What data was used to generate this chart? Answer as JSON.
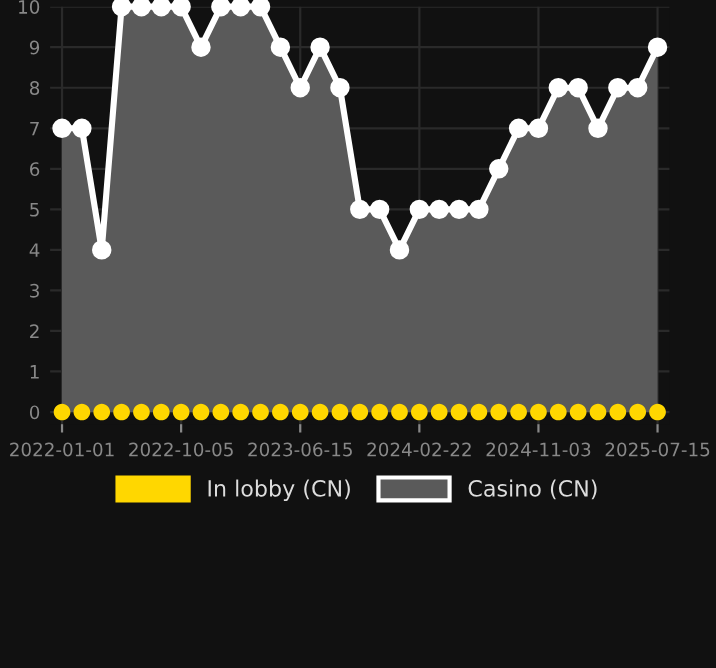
{
  "chart_data": {
    "type": "area",
    "categories": [
      "2022-01-01",
      null,
      null,
      null,
      null,
      null,
      "2022-10-05",
      null,
      null,
      null,
      null,
      null,
      "2023-06-15",
      null,
      null,
      null,
      null,
      null,
      "2024-02-22",
      null,
      null,
      null,
      null,
      null,
      "2024-11-03",
      null,
      null,
      null,
      null,
      null,
      "2025-07-15"
    ],
    "series": [
      {
        "name": "In lobby (CN)",
        "type": "scatter",
        "color": "#ffd700",
        "values": [
          0,
          0,
          0,
          0,
          0,
          0,
          0,
          0,
          0,
          0,
          0,
          0,
          0,
          0,
          0,
          0,
          0,
          0,
          0,
          0,
          0,
          0,
          0,
          0,
          0,
          0,
          0,
          0,
          0,
          0,
          0
        ]
      },
      {
        "name": "Casino (CN)",
        "color": "#ffffff",
        "values": [
          7,
          7,
          4,
          10,
          10,
          10,
          10,
          9,
          10,
          10,
          10,
          9,
          8,
          9,
          8,
          5,
          5,
          4,
          5,
          5,
          5,
          5,
          6,
          7,
          7,
          8,
          8,
          7,
          8,
          8,
          9
        ]
      }
    ],
    "ylim": [
      -0.3,
      10
    ],
    "yticks": [
      0,
      1,
      2,
      3,
      4,
      5,
      6,
      7,
      8,
      9,
      10
    ],
    "grid": true,
    "legend": "bottom",
    "marker": "circle",
    "line_style": "solid"
  }
}
